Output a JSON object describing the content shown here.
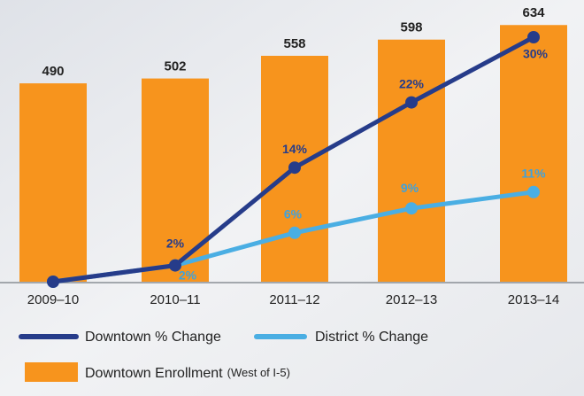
{
  "chart_data": {
    "type": "bar_line",
    "categories": [
      "2009–10",
      "2010–11",
      "2011–12",
      "2012–13",
      "2013–14"
    ],
    "bars": {
      "name": "Downtown Enrollment",
      "note": "(West of I-5)",
      "color": "#f7941d",
      "values": [
        490,
        502,
        558,
        598,
        634
      ]
    },
    "series": [
      {
        "name": "Downtown % Change",
        "color": "#263c8a",
        "label_color": "#263c8a",
        "values": [
          0,
          2,
          14,
          22,
          30
        ],
        "value_labels": [
          null,
          "2%",
          "14%",
          "22%",
          "30%"
        ]
      },
      {
        "name": "District % Change",
        "color": "#4aaee3",
        "label_color": "#3fa2dc",
        "values": [
          0,
          2,
          6,
          9,
          11
        ],
        "value_labels": [
          null,
          "2%",
          "6%",
          "9%",
          "11%"
        ]
      }
    ]
  }
}
